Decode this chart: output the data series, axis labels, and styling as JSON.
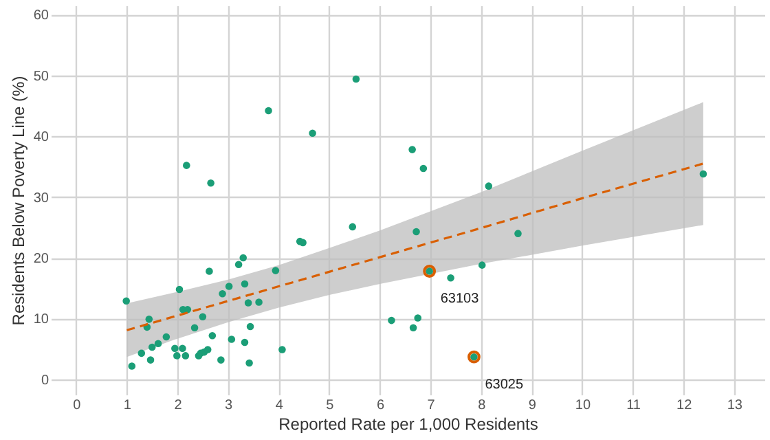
{
  "chart_data": {
    "type": "scatter",
    "xlabel": "Reported Rate per 1,000 Residents",
    "ylabel": "Residents Below Poverty Line (%)",
    "xlim": [
      -0.5,
      13.6
    ],
    "ylim": [
      -2.5,
      61.5
    ],
    "xticks": [
      0,
      1,
      2,
      3,
      4,
      5,
      6,
      7,
      8,
      9,
      10,
      11,
      12,
      13
    ],
    "yticks": [
      0,
      10,
      20,
      30,
      40,
      50,
      60
    ],
    "grid": true,
    "series": [
      {
        "marker": "circle",
        "color": "#1b9e77",
        "x": [
          0.99,
          1.1,
          1.29,
          1.4,
          1.44,
          1.47,
          1.5,
          1.62,
          1.78,
          1.95,
          1.99,
          2.04,
          2.1,
          2.11,
          2.16,
          2.18,
          2.2,
          2.34,
          2.42,
          2.46,
          2.5,
          2.53,
          2.6,
          2.63,
          2.66,
          2.69,
          2.86,
          2.89,
          3.02,
          3.07,
          3.21,
          3.3,
          3.33,
          3.33,
          3.4,
          3.42,
          3.44,
          3.61,
          3.8,
          3.94,
          4.07,
          4.42,
          4.48,
          4.67,
          5.46,
          5.53,
          6.23,
          6.64,
          6.66,
          6.72,
          6.75,
          6.86,
          6.98,
          7.4,
          7.86,
          8.02,
          8.15,
          8.73,
          12.39
        ],
        "values": [
          12.9,
          2.2,
          4.3,
          8.6,
          9.9,
          3.2,
          5.3,
          5.9,
          7.0,
          5.1,
          3.9,
          14.8,
          5.1,
          11.5,
          3.9,
          35.2,
          11.5,
          8.5,
          3.9,
          4.3,
          10.3,
          4.5,
          4.9,
          17.8,
          32.3,
          7.2,
          3.2,
          14.1,
          15.3,
          6.6,
          18.9,
          20.0,
          15.7,
          6.1,
          12.6,
          2.7,
          8.7,
          12.7,
          44.2,
          17.9,
          4.9,
          22.7,
          22.5,
          40.5,
          25.1,
          49.4,
          9.7,
          37.8,
          8.5,
          24.3,
          10.1,
          34.7,
          17.8,
          16.7,
          3.7,
          18.8,
          31.8,
          24.0,
          33.8
        ]
      },
      {
        "type": "scatter",
        "marker": "circle",
        "color": "#d95f02",
        "x": [
          6.98,
          7.86
        ],
        "values": [
          17.8,
          3.7
        ]
      },
      {
        "type": "line",
        "color": "#d95f02",
        "line_style": "dashed",
        "x": [
          1,
          2,
          3,
          4,
          5,
          6,
          8,
          10,
          12.39
        ],
        "values": [
          8.1,
          10.5,
          12.9,
          15.3,
          17.7,
          20.1,
          24.9,
          29.8,
          35.5
        ],
        "lower": [
          3.7,
          6.7,
          9.4,
          11.8,
          13.9,
          15.7,
          19.0,
          22.0,
          25.4
        ],
        "upper": [
          12.5,
          14.4,
          16.4,
          18.8,
          21.6,
          24.5,
          30.8,
          37.6,
          45.6
        ]
      }
    ],
    "annotations": [
      {
        "text": "63103",
        "x": 6.98,
        "y": 17.8
      },
      {
        "text": "63025",
        "x": 7.86,
        "y": 3.7
      }
    ]
  }
}
